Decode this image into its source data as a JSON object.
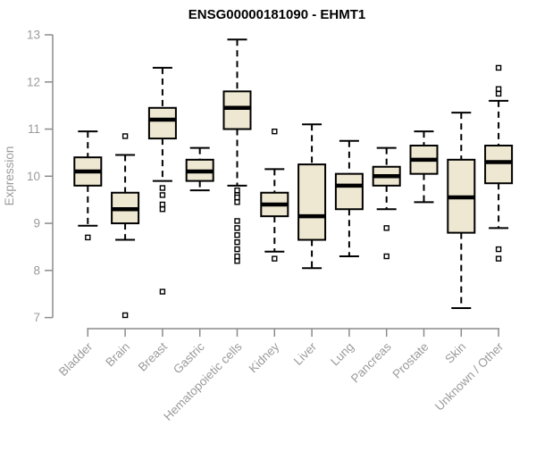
{
  "chart_data": {
    "type": "boxplot",
    "title": "ENSG00000181090 - EHMT1",
    "xlabel": "",
    "ylabel": "Expression",
    "ylim": [
      7,
      13
    ],
    "yticks": [
      7,
      8,
      9,
      10,
      11,
      12,
      13
    ],
    "grid": false,
    "legend": false,
    "categories": [
      "Bladder",
      "Brain",
      "Breast",
      "Gastric",
      "Hematopoietic cells",
      "Kidney",
      "Liver",
      "Lung",
      "Pancreas",
      "Prostate",
      "Skin",
      "Unknown / Other"
    ],
    "series": [
      {
        "name": "Bladder",
        "whisker_low": 8.95,
        "q1": 9.8,
        "median": 10.1,
        "q3": 10.4,
        "whisker_high": 10.95,
        "outliers": [
          8.7
        ]
      },
      {
        "name": "Brain",
        "whisker_low": 8.65,
        "q1": 9.0,
        "median": 9.3,
        "q3": 9.65,
        "whisker_high": 10.45,
        "outliers": [
          10.85,
          7.05
        ]
      },
      {
        "name": "Breast",
        "whisker_low": 9.9,
        "q1": 10.8,
        "median": 11.2,
        "q3": 11.45,
        "whisker_high": 12.3,
        "outliers": [
          9.75,
          9.6,
          9.4,
          9.3,
          7.55
        ]
      },
      {
        "name": "Gastric",
        "whisker_low": 9.7,
        "q1": 9.9,
        "median": 10.1,
        "q3": 10.35,
        "whisker_high": 10.6,
        "outliers": []
      },
      {
        "name": "Hematopoietic cells",
        "whisker_low": 9.8,
        "q1": 11.0,
        "median": 11.45,
        "q3": 11.8,
        "whisker_high": 12.9,
        "outliers": [
          9.7,
          9.6,
          9.55,
          9.45,
          9.05,
          8.9,
          8.75,
          8.6,
          8.45,
          8.3,
          8.2
        ]
      },
      {
        "name": "Kidney",
        "whisker_low": 8.4,
        "q1": 9.15,
        "median": 9.4,
        "q3": 9.65,
        "whisker_high": 10.15,
        "outliers": [
          10.95,
          8.25
        ]
      },
      {
        "name": "Liver",
        "whisker_low": 8.05,
        "q1": 8.65,
        "median": 9.15,
        "q3": 10.25,
        "whisker_high": 11.1,
        "outliers": []
      },
      {
        "name": "Lung",
        "whisker_low": 8.3,
        "q1": 9.3,
        "median": 9.8,
        "q3": 10.05,
        "whisker_high": 10.75,
        "outliers": []
      },
      {
        "name": "Pancreas",
        "whisker_low": 9.3,
        "q1": 9.8,
        "median": 10.0,
        "q3": 10.2,
        "whisker_high": 10.6,
        "outliers": [
          8.9,
          8.3
        ]
      },
      {
        "name": "Prostate",
        "whisker_low": 9.45,
        "q1": 10.05,
        "median": 10.35,
        "q3": 10.65,
        "whisker_high": 10.95,
        "outliers": []
      },
      {
        "name": "Skin",
        "whisker_low": 7.2,
        "q1": 8.8,
        "median": 9.55,
        "q3": 10.35,
        "whisker_high": 11.35,
        "outliers": []
      },
      {
        "name": "Unknown / Other",
        "whisker_low": 8.9,
        "q1": 9.85,
        "median": 10.3,
        "q3": 10.65,
        "whisker_high": 11.6,
        "outliers": [
          12.3,
          11.85,
          11.75,
          8.45,
          8.25
        ]
      }
    ],
    "colors": {
      "box_fill": "#EEE8D2",
      "box_stroke": "#000000",
      "median": "#000000",
      "whisker": "#000000",
      "outlier_stroke": "#000000",
      "axis": "#8C8C8C",
      "tick_label": "#9B9B9B",
      "title": "#000000",
      "background": "#FFFFFF"
    }
  }
}
